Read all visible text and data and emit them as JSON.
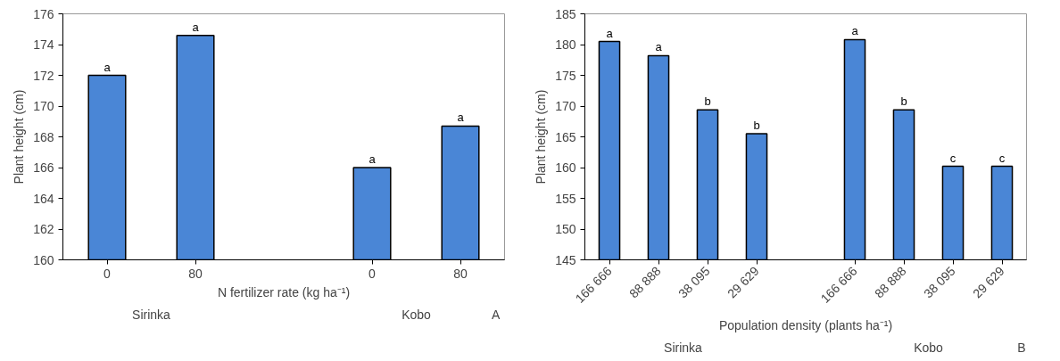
{
  "chart_data": [
    {
      "type": "bar",
      "categories": [
        "0",
        "80",
        null,
        "0",
        "80"
      ],
      "values": [
        172.0,
        174.6,
        null,
        166.0,
        168.7
      ],
      "color": "#4a86d6",
      "value_labels": [
        "a",
        "a",
        null,
        "a",
        "a"
      ],
      "xlabel": "N fertilizer rate (kg ha⁻¹)",
      "ylabel": "Plant height (cm)",
      "ylim": [
        160,
        176
      ],
      "yticks": [
        160,
        162,
        164,
        166,
        168,
        170,
        172,
        174,
        176
      ],
      "grid": false,
      "annotations": [
        "Sirinka",
        "Kobo",
        "A"
      ]
    },
    {
      "type": "bar",
      "categories": [
        "166 666",
        "88 888",
        "38 095",
        "29 629",
        null,
        "166 666",
        "88 888",
        "38 095",
        "29 629"
      ],
      "values": [
        180.5,
        178.2,
        169.4,
        165.5,
        null,
        180.8,
        169.4,
        160.2,
        160.2
      ],
      "color": "#4a86d6",
      "value_labels": [
        "a",
        "a",
        "b",
        "b",
        null,
        "a",
        "b",
        "c",
        "c"
      ],
      "xlabel": "Population density (plants ha⁻¹)",
      "ylabel": "Plant height (cm)",
      "ylim": [
        145,
        185
      ],
      "yticks": [
        145,
        150,
        155,
        160,
        165,
        170,
        175,
        180,
        185
      ],
      "grid": false,
      "annotations": [
        "Sirinka",
        "Kobo",
        "B"
      ]
    }
  ]
}
